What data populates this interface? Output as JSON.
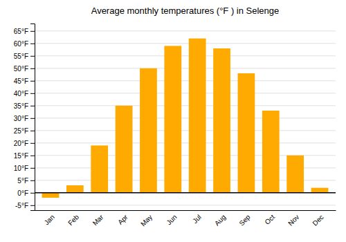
{
  "chart_data": {
    "type": "bar",
    "title": "Average monthly temperatures (°F ) in Selenge",
    "categories": [
      "Jan",
      "Feb",
      "Mar",
      "Apr",
      "May",
      "Jun",
      "Jul",
      "Aug",
      "Sep",
      "Oct",
      "Nov",
      "Dec"
    ],
    "values": [
      -2,
      3,
      19,
      35,
      50,
      59,
      62,
      58,
      48,
      33,
      15,
      2
    ],
    "color": "#FFAA00",
    "ylim": [
      -7,
      68
    ],
    "yticks": [
      {
        "value": -5,
        "label": "-5°F"
      },
      {
        "value": 0,
        "label": "0°F"
      },
      {
        "value": 5,
        "label": "5°F"
      },
      {
        "value": 10,
        "label": "10°F"
      },
      {
        "value": 15,
        "label": "15°F"
      },
      {
        "value": 20,
        "label": "20°F"
      },
      {
        "value": 25,
        "label": "25°F"
      },
      {
        "value": 30,
        "label": "30°F"
      },
      {
        "value": 35,
        "label": "35°F"
      },
      {
        "value": 40,
        "label": "40°F"
      },
      {
        "value": 45,
        "label": "45°F"
      },
      {
        "value": 50,
        "label": "50°F"
      },
      {
        "value": 55,
        "label": "55°F"
      },
      {
        "value": 60,
        "label": "60°F"
      },
      {
        "value": 65,
        "label": "65°F"
      }
    ],
    "grid": true
  }
}
